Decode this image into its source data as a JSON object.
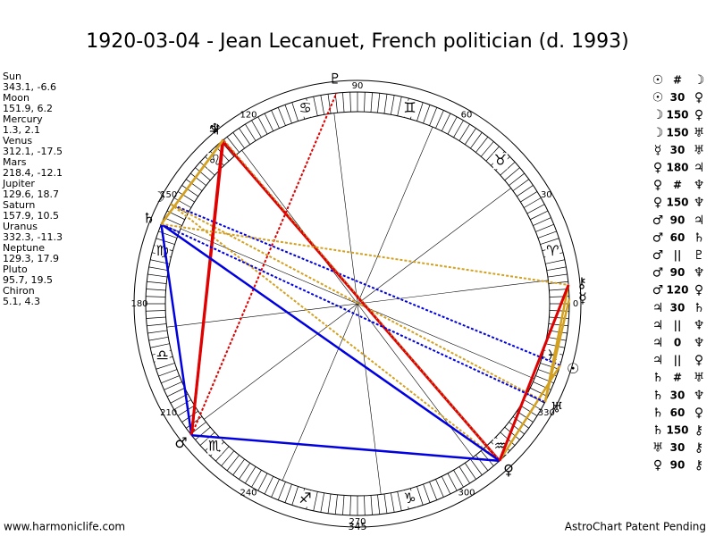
{
  "title": "1920-03-04 - Jean Lecanuet, French politician (d. 1993)",
  "planets": [
    {
      "name": "Sun",
      "glyph": "☉",
      "position": "343.1, -6.6"
    },
    {
      "name": "Moon",
      "glyph": "☽",
      "position": "151.9, 6.2"
    },
    {
      "name": "Mercury",
      "glyph": "☿",
      "position": "1.3, 2.1"
    },
    {
      "name": "Venus",
      "glyph": "♀",
      "position": "312.1, -17.5"
    },
    {
      "name": "Mars",
      "glyph": "♂",
      "position": "218.4, -12.1"
    },
    {
      "name": "Jupiter",
      "glyph": "♃",
      "position": "129.6, 18.7"
    },
    {
      "name": "Saturn",
      "glyph": "♄",
      "position": "157.9, 10.5"
    },
    {
      "name": "Uranus",
      "glyph": "♅",
      "position": "332.3, -11.3"
    },
    {
      "name": "Neptune",
      "glyph": "♆",
      "position": "129.3, 17.9"
    },
    {
      "name": "Pluto",
      "glyph": "♇",
      "position": "95.7, 19.5"
    },
    {
      "name": "Chiron",
      "glyph": "⚷",
      "position": "5.1, 4.3"
    }
  ],
  "aspects": [
    [
      "☉",
      "#",
      "☽"
    ],
    [
      "☉",
      "30",
      "♀"
    ],
    [
      "☽",
      "150",
      "♀"
    ],
    [
      "☽",
      "150",
      "♅"
    ],
    [
      "☿",
      "30",
      "♅"
    ],
    [
      "♀",
      "180",
      "♃"
    ],
    [
      "♀",
      "#",
      "♆"
    ],
    [
      "♀",
      "150",
      "♆"
    ],
    [
      "♂",
      "90",
      "♃"
    ],
    [
      "♂",
      "60",
      "♄"
    ],
    [
      "♂",
      "||",
      "♇"
    ],
    [
      "♂",
      "90",
      "♆"
    ],
    [
      "♂",
      "120",
      "♀"
    ],
    [
      "♃",
      "30",
      "♄"
    ],
    [
      "♃",
      "||",
      "♆"
    ],
    [
      "♃",
      "0",
      "♆"
    ],
    [
      "♃",
      "||",
      "♀"
    ],
    [
      "♄",
      "#",
      "♅"
    ],
    [
      "♄",
      "30",
      "♆"
    ],
    [
      "♄",
      "60",
      "♀"
    ],
    [
      "♄",
      "150",
      "⚷"
    ],
    [
      "♅",
      "30",
      "⚷"
    ],
    [
      "♀",
      "90",
      "⚷"
    ]
  ],
  "signs": [
    "♈",
    "♉",
    "♊",
    "♋",
    "♌",
    "♍",
    "♎",
    "♏",
    "♐",
    "♑",
    "♒",
    "♓"
  ],
  "degree_labels": [
    0,
    30,
    60,
    90,
    120,
    150,
    180,
    210,
    240,
    270,
    300,
    330
  ],
  "bottom_label": "345",
  "footer": {
    "left": "www.harmoniclife.com",
    "right": "AstroChart Patent Pending"
  }
}
